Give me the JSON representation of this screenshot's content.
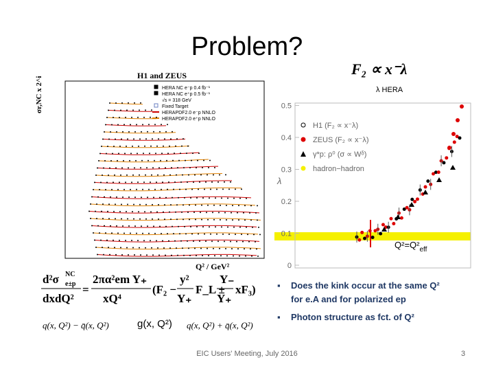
{
  "title": "Problem?",
  "left_plot": {
    "title": "H1 and ZEUS",
    "y_label": "σr,NC x 2^i",
    "x_label": "Q² / GeV²",
    "legend": [
      "HERA NC e⁻p 0.4 fb⁻¹",
      "HERA NC e⁺p 0.5 fb⁻¹",
      "√s = 318 GeV",
      "Fixed Target",
      "HERAPDF2.0 e⁻p NNLO",
      "HERAPDF2.0 e⁺p NNLO"
    ]
  },
  "right_plot": {
    "formula": "F₂ ∝ x⁻λ",
    "label": "λ HERA",
    "y_label": "λ",
    "yticks": [
      "0",
      "0.1",
      "0.2",
      "0.3",
      "0.4",
      "0.5"
    ],
    "legend": [
      "H1 (F₂ ∝ x⁻λ)",
      "ZEUS (F₂ ∝ x⁻λ)",
      "γ*p: ρ⁰ (σ ∝ Wᵟ)",
      "hadron−hadron"
    ],
    "annotation": {
      "main": "Q²=Q²",
      "sub": "eff"
    }
  },
  "cross_section": {
    "lhs_num": "d²σ",
    "lhs_sup": "NC",
    "lhs_sub": "e±p",
    "lhs_den": "dxdQ²",
    "equals": "=",
    "rhs_num": "2πα²em Y₊",
    "rhs_den": "xQ⁴",
    "open": "(F₂ −",
    "y_num": "y²",
    "y_den": "Y₊",
    "fl": "F_L ±",
    "ym_num": "Y₋",
    "ym_den": "Y₊",
    "close": "xF₃)"
  },
  "distributions": [
    "q(x, Q²) − q̄(x, Q²)",
    "g(x, Q²)",
    "q(x, Q²) + q̄(x, Q²)"
  ],
  "bullets": [
    [
      "Does the kink occur at the same Q²",
      "for e.A and for polarized ep"
    ],
    [
      "Photon structure as fct. of Q²"
    ]
  ],
  "footer": "EIC Users' Meeting, July 2016",
  "page_number": "3"
}
